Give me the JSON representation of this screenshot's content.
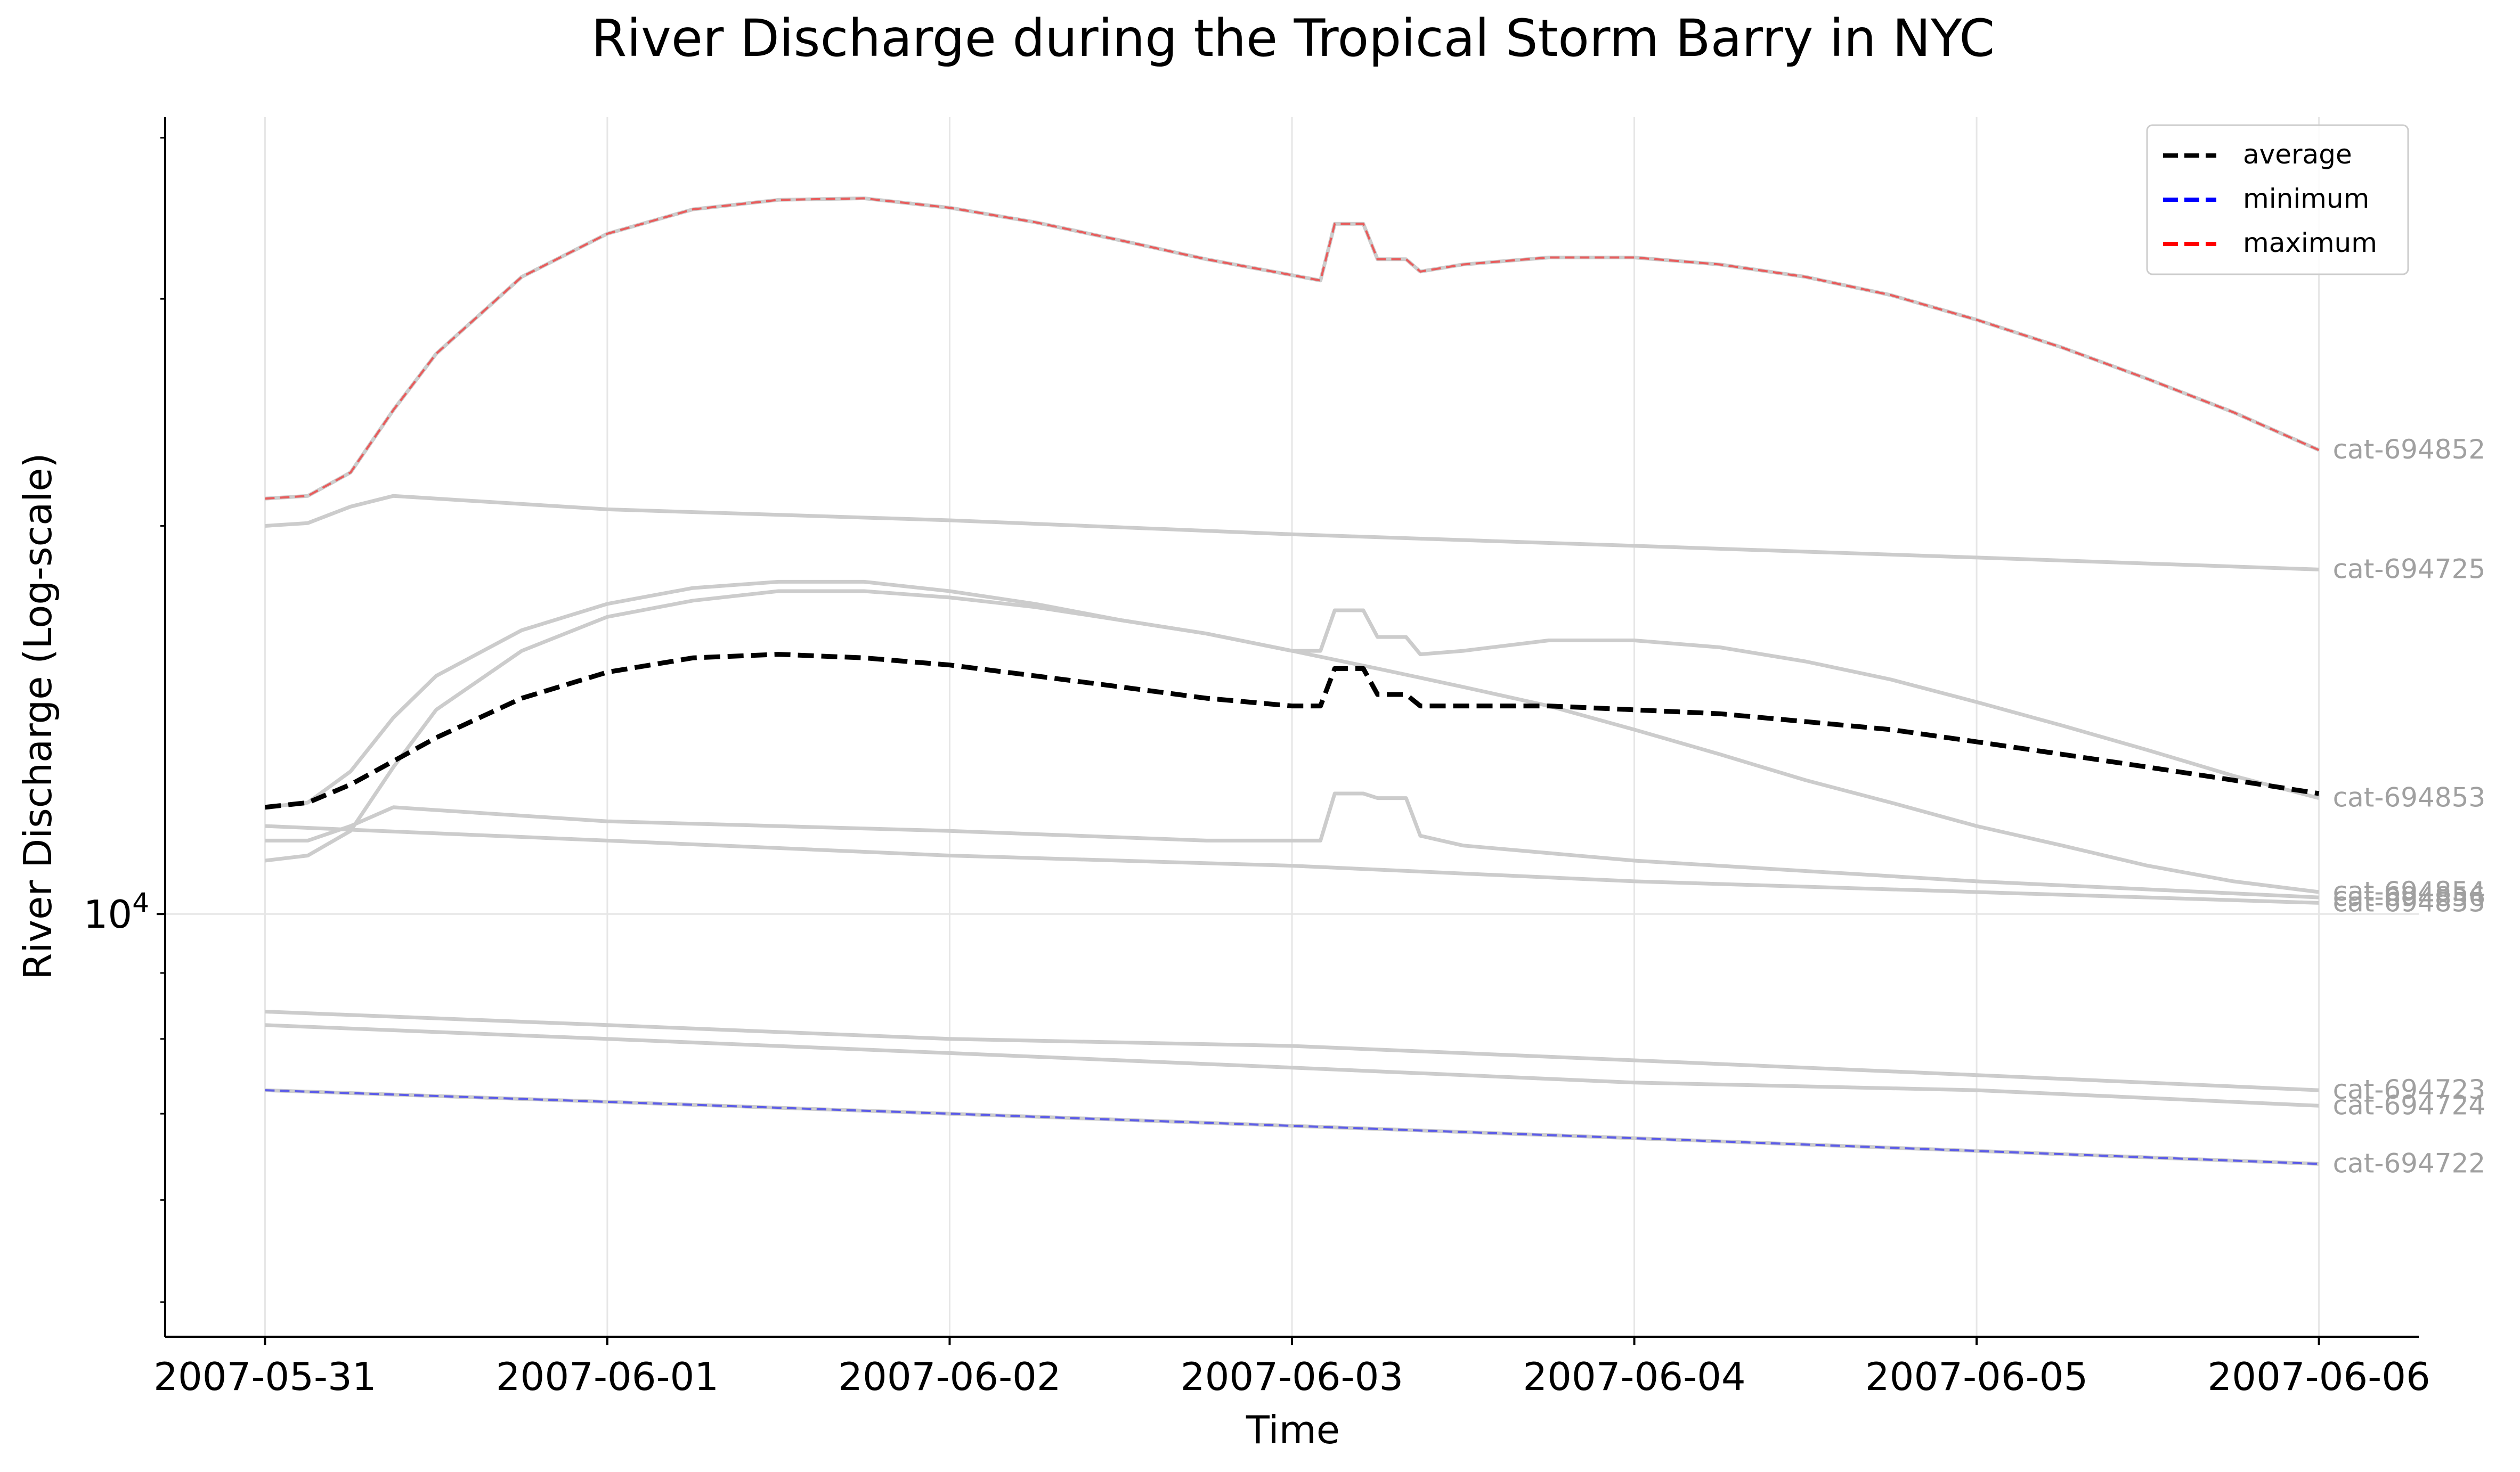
{
  "chart_data": {
    "type": "line",
    "title": "River Discharge during the Tropical Storm Barry in NYC",
    "xlabel": "Time",
    "ylabel": "River Discharge (Log-scale)",
    "yscale": "log",
    "ytick_label": "10^4",
    "x_tick_labels": [
      "2007-05-31",
      "2007-06-01",
      "2007-06-02",
      "2007-06-03",
      "2007-06-04",
      "2007-06-05",
      "2007-06-06"
    ],
    "xlim": [
      "2007-05-30T17:00",
      "2007-06-06T07:00"
    ],
    "ylim": [
      4700,
      41500
    ],
    "grid": true,
    "legend_position": "top-right",
    "legend": [
      {
        "label": "average",
        "color": "#000000",
        "style": "dashed"
      },
      {
        "label": "minimum",
        "color": "#0000ff",
        "style": "dashed"
      },
      {
        "label": "maximum",
        "color": "#ff0000",
        "style": "dashed"
      }
    ],
    "colors": {
      "catchment": "#cccccc",
      "catchment_label": "#a0a0a0",
      "average": "#000000",
      "minimum": "#0000ff",
      "maximum": "#ff0000",
      "grid": "#e6e6e6",
      "axis": "#000000"
    },
    "series": [
      {
        "name": "cat-694852",
        "points": [
          [
            "2007-05-31T00:00",
            21000
          ],
          [
            "2007-05-31T03:00",
            21100
          ],
          [
            "2007-05-31T06:00",
            22000
          ],
          [
            "2007-05-31T09:00",
            24600
          ],
          [
            "2007-05-31T12:00",
            27200
          ],
          [
            "2007-05-31T18:00",
            31200
          ],
          [
            "2007-06-01T00:00",
            33700
          ],
          [
            "2007-06-01T06:00",
            35200
          ],
          [
            "2007-06-01T12:00",
            35800
          ],
          [
            "2007-06-01T18:00",
            35900
          ],
          [
            "2007-06-02T00:00",
            35300
          ],
          [
            "2007-06-02T06:00",
            34400
          ],
          [
            "2007-06-02T12:00",
            33300
          ],
          [
            "2007-06-02T18:00",
            32200
          ],
          [
            "2007-06-03T00:00",
            31300
          ],
          [
            "2007-06-03T02:00",
            31000
          ],
          [
            "2007-06-03T03:00",
            34300
          ],
          [
            "2007-06-03T05:00",
            34300
          ],
          [
            "2007-06-03T06:00",
            32200
          ],
          [
            "2007-06-03T08:00",
            32200
          ],
          [
            "2007-06-03T09:00",
            31500
          ],
          [
            "2007-06-03T12:00",
            31900
          ],
          [
            "2007-06-03T18:00",
            32300
          ],
          [
            "2007-06-04T00:00",
            32300
          ],
          [
            "2007-06-04T06:00",
            31900
          ],
          [
            "2007-06-04T12:00",
            31200
          ],
          [
            "2007-06-04T18:00",
            30200
          ],
          [
            "2007-06-05T00:00",
            28900
          ],
          [
            "2007-06-05T06:00",
            27500
          ],
          [
            "2007-06-05T12:00",
            26000
          ],
          [
            "2007-06-05T18:00",
            24500
          ],
          [
            "2007-06-06T00:00",
            22900
          ]
        ]
      },
      {
        "name": "cat-694725",
        "points": [
          [
            "2007-05-31T00:00",
            20000
          ],
          [
            "2007-05-31T03:00",
            20100
          ],
          [
            "2007-05-31T06:00",
            20700
          ],
          [
            "2007-05-31T09:00",
            21100
          ],
          [
            "2007-06-01T00:00",
            20600
          ],
          [
            "2007-06-02T00:00",
            20200
          ],
          [
            "2007-06-03T00:00",
            19700
          ],
          [
            "2007-06-04T00:00",
            19300
          ],
          [
            "2007-06-05T00:00",
            18900
          ],
          [
            "2007-06-06T00:00",
            18500
          ]
        ]
      },
      {
        "name": "cat-694853",
        "points": [
          [
            "2007-05-31T00:00",
            12100
          ],
          [
            "2007-05-31T03:00",
            12200
          ],
          [
            "2007-05-31T06:00",
            12900
          ],
          [
            "2007-05-31T09:00",
            14200
          ],
          [
            "2007-05-31T12:00",
            15300
          ],
          [
            "2007-05-31T18:00",
            16600
          ],
          [
            "2007-06-01T00:00",
            17400
          ],
          [
            "2007-06-01T06:00",
            17900
          ],
          [
            "2007-06-01T12:00",
            18100
          ],
          [
            "2007-06-01T18:00",
            18100
          ],
          [
            "2007-06-02T00:00",
            17800
          ],
          [
            "2007-06-02T06:00",
            17400
          ],
          [
            "2007-06-02T12:00",
            16900
          ],
          [
            "2007-06-02T18:00",
            16500
          ],
          [
            "2007-06-03T00:00",
            16000
          ],
          [
            "2007-06-03T02:00",
            16000
          ],
          [
            "2007-06-03T03:00",
            17200
          ],
          [
            "2007-06-03T05:00",
            17200
          ],
          [
            "2007-06-03T06:00",
            16400
          ],
          [
            "2007-06-03T08:00",
            16400
          ],
          [
            "2007-06-03T09:00",
            15900
          ],
          [
            "2007-06-03T12:00",
            16000
          ],
          [
            "2007-06-03T18:00",
            16300
          ],
          [
            "2007-06-04T00:00",
            16300
          ],
          [
            "2007-06-04T06:00",
            16100
          ],
          [
            "2007-06-04T12:00",
            15700
          ],
          [
            "2007-06-04T18:00",
            15200
          ],
          [
            "2007-06-05T00:00",
            14600
          ],
          [
            "2007-06-05T06:00",
            14000
          ],
          [
            "2007-06-05T12:00",
            13400
          ],
          [
            "2007-06-05T18:00",
            12800
          ],
          [
            "2007-06-06T00:00",
            12300
          ]
        ]
      },
      {
        "name": "cat-694854",
        "points": [
          [
            "2007-05-31T00:00",
            11000
          ],
          [
            "2007-05-31T03:00",
            11100
          ],
          [
            "2007-05-31T06:00",
            11600
          ],
          [
            "2007-05-31T09:00",
            13000
          ],
          [
            "2007-05-31T12:00",
            14400
          ],
          [
            "2007-05-31T18:00",
            16000
          ],
          [
            "2007-06-01T00:00",
            17000
          ],
          [
            "2007-06-01T06:00",
            17500
          ],
          [
            "2007-06-01T12:00",
            17800
          ],
          [
            "2007-06-01T18:00",
            17800
          ],
          [
            "2007-06-02T00:00",
            17600
          ],
          [
            "2007-06-02T06:00",
            17300
          ],
          [
            "2007-06-02T12:00",
            16900
          ],
          [
            "2007-06-02T18:00",
            16500
          ],
          [
            "2007-06-03T00:00",
            16000
          ],
          [
            "2007-06-03T06:00",
            15500
          ],
          [
            "2007-06-03T12:00",
            15000
          ],
          [
            "2007-06-03T18:00",
            14500
          ],
          [
            "2007-06-04T00:00",
            13900
          ],
          [
            "2007-06-04T06:00",
            13300
          ],
          [
            "2007-06-04T12:00",
            12700
          ],
          [
            "2007-06-04T18:00",
            12200
          ],
          [
            "2007-06-05T00:00",
            11700
          ],
          [
            "2007-06-05T06:00",
            11300
          ],
          [
            "2007-06-05T12:00",
            10900
          ],
          [
            "2007-06-05T18:00",
            10600
          ],
          [
            "2007-06-06T00:00",
            10400
          ]
        ]
      },
      {
        "name": "cat-694856",
        "points": [
          [
            "2007-05-31T00:00",
            11400
          ],
          [
            "2007-05-31T03:00",
            11400
          ],
          [
            "2007-05-31T06:00",
            11700
          ],
          [
            "2007-05-31T09:00",
            12100
          ],
          [
            "2007-06-01T00:00",
            11800
          ],
          [
            "2007-06-02T00:00",
            11600
          ],
          [
            "2007-06-02T18:00",
            11400
          ],
          [
            "2007-06-03T00:00",
            11400
          ],
          [
            "2007-06-03T02:00",
            11400
          ],
          [
            "2007-06-03T03:00",
            12400
          ],
          [
            "2007-06-03T05:00",
            12400
          ],
          [
            "2007-06-03T06:00",
            12300
          ],
          [
            "2007-06-03T08:00",
            12300
          ],
          [
            "2007-06-03T09:00",
            11500
          ],
          [
            "2007-06-03T12:00",
            11300
          ],
          [
            "2007-06-04T00:00",
            11000
          ],
          [
            "2007-06-05T00:00",
            10600
          ],
          [
            "2007-06-06T00:00",
            10300
          ]
        ]
      },
      {
        "name": "cat-694855",
        "points": [
          [
            "2007-05-31T00:00",
            11700
          ],
          [
            "2007-06-01T00:00",
            11400
          ],
          [
            "2007-06-02T00:00",
            11100
          ],
          [
            "2007-06-03T00:00",
            10900
          ],
          [
            "2007-06-04T00:00",
            10600
          ],
          [
            "2007-06-05T00:00",
            10400
          ],
          [
            "2007-06-06T00:00",
            10200
          ]
        ]
      },
      {
        "name": "cat-694723",
        "points": [
          [
            "2007-05-31T00:00",
            8400
          ],
          [
            "2007-06-01T00:00",
            8200
          ],
          [
            "2007-06-02T00:00",
            8000
          ],
          [
            "2007-06-03T00:00",
            7900
          ],
          [
            "2007-06-04T00:00",
            7700
          ],
          [
            "2007-06-05T00:00",
            7500
          ],
          [
            "2007-06-06T00:00",
            7300
          ]
        ]
      },
      {
        "name": "cat-694724",
        "points": [
          [
            "2007-05-31T00:00",
            8200
          ],
          [
            "2007-06-01T00:00",
            8000
          ],
          [
            "2007-06-02T00:00",
            7800
          ],
          [
            "2007-06-03T00:00",
            7600
          ],
          [
            "2007-06-04T00:00",
            7400
          ],
          [
            "2007-06-05T00:00",
            7300
          ],
          [
            "2007-06-06T00:00",
            7100
          ]
        ]
      },
      {
        "name": "cat-694722",
        "points": [
          [
            "2007-05-31T00:00",
            7300
          ],
          [
            "2007-06-01T00:00",
            7150
          ],
          [
            "2007-06-02T00:00",
            7000
          ],
          [
            "2007-06-03T00:00",
            6850
          ],
          [
            "2007-06-04T00:00",
            6700
          ],
          [
            "2007-06-05T00:00",
            6550
          ],
          [
            "2007-06-06T00:00",
            6400
          ]
        ]
      },
      {
        "name": "average",
        "points": [
          [
            "2007-05-31T00:00",
            12100
          ],
          [
            "2007-05-31T03:00",
            12200
          ],
          [
            "2007-05-31T06:00",
            12600
          ],
          [
            "2007-05-31T12:00",
            13700
          ],
          [
            "2007-05-31T18:00",
            14700
          ],
          [
            "2007-06-01T00:00",
            15400
          ],
          [
            "2007-06-01T06:00",
            15800
          ],
          [
            "2007-06-01T12:00",
            15900
          ],
          [
            "2007-06-01T18:00",
            15800
          ],
          [
            "2007-06-02T00:00",
            15600
          ],
          [
            "2007-06-02T06:00",
            15300
          ],
          [
            "2007-06-02T12:00",
            15000
          ],
          [
            "2007-06-02T18:00",
            14700
          ],
          [
            "2007-06-03T00:00",
            14500
          ],
          [
            "2007-06-03T02:00",
            14500
          ],
          [
            "2007-06-03T03:00",
            15500
          ],
          [
            "2007-06-03T05:00",
            15500
          ],
          [
            "2007-06-03T06:00",
            14800
          ],
          [
            "2007-06-03T08:00",
            14800
          ],
          [
            "2007-06-03T09:00",
            14500
          ],
          [
            "2007-06-03T12:00",
            14500
          ],
          [
            "2007-06-03T18:00",
            14500
          ],
          [
            "2007-06-04T00:00",
            14400
          ],
          [
            "2007-06-04T06:00",
            14300
          ],
          [
            "2007-06-04T12:00",
            14100
          ],
          [
            "2007-06-04T18:00",
            13900
          ],
          [
            "2007-06-05T00:00",
            13600
          ],
          [
            "2007-06-05T06:00",
            13300
          ],
          [
            "2007-06-05T12:00",
            13000
          ],
          [
            "2007-06-05T18:00",
            12700
          ],
          [
            "2007-06-06T00:00",
            12400
          ]
        ]
      }
    ]
  }
}
